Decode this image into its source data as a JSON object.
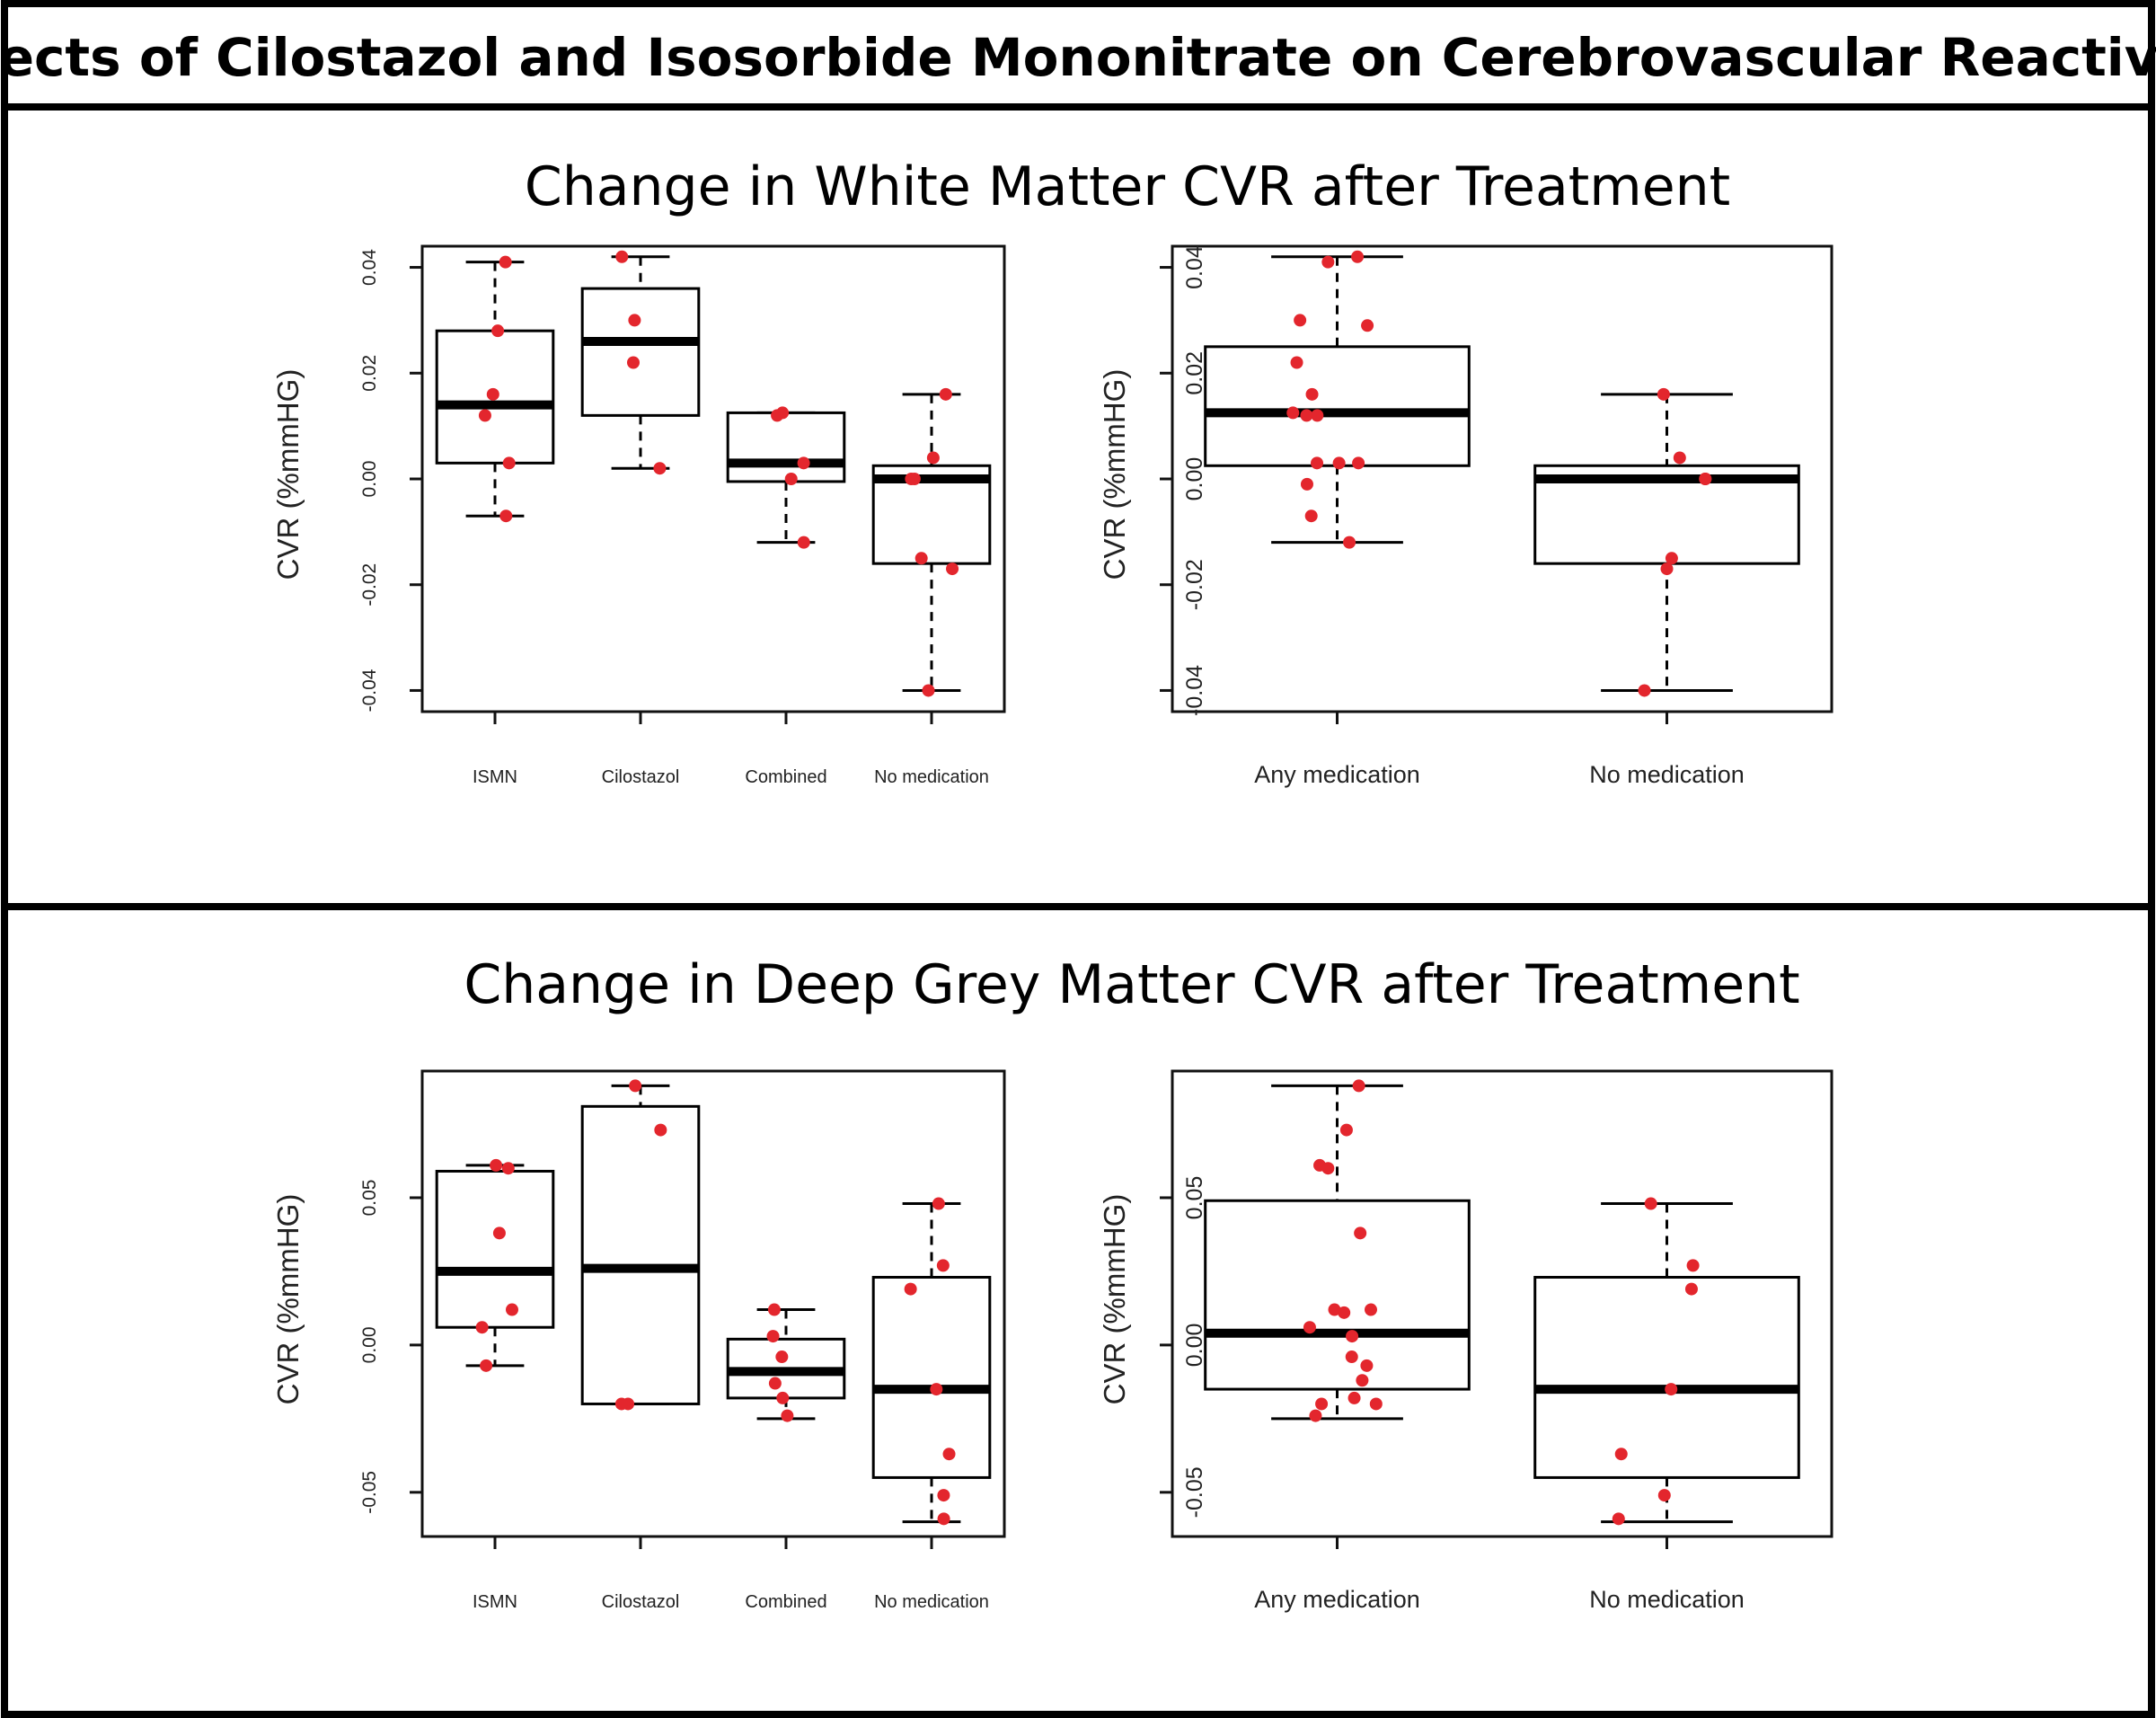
{
  "figure_title": "Effects of Cilostazol and Isosorbide Mononitrate on Cerebrovascular Reactivity",
  "panels": [
    {
      "title": "Change in White Matter CVR after Treatment"
    },
    {
      "title": "Change in Deep Grey Matter CVR after Treatment"
    }
  ],
  "colors": {
    "points": "#e3262d",
    "box": "#000000",
    "border": "#000000"
  },
  "chart_data": [
    {
      "type": "box",
      "panel": 0,
      "ylabel": "CVR (%mmHG)",
      "ylim": [
        -0.044,
        0.044
      ],
      "yticks": [
        -0.04,
        -0.02,
        0.0,
        0.02,
        0.04
      ],
      "ytick_labels": [
        "-0.04",
        "-0.02",
        "0.00",
        "0.02",
        "0.04"
      ],
      "categories": [
        "ISMN",
        "Cilostazol",
        "Combined",
        "No medication"
      ],
      "boxes": [
        {
          "whisker_low": -0.007,
          "q1": 0.003,
          "median": 0.014,
          "q3": 0.028,
          "whisker_high": 0.041
        },
        {
          "whisker_low": 0.002,
          "q1": 0.012,
          "median": 0.026,
          "q3": 0.036,
          "whisker_high": 0.042
        },
        {
          "whisker_low": -0.012,
          "q1": -0.0005,
          "median": 0.003,
          "q3": 0.0125,
          "whisker_high": 0.0125
        },
        {
          "whisker_low": -0.04,
          "q1": -0.016,
          "median": 0.0,
          "q3": 0.0025,
          "whisker_high": 0.016
        }
      ],
      "points": [
        [
          0.041,
          0.028,
          0.016,
          0.012,
          0.003,
          -0.007
        ],
        [
          0.042,
          0.03,
          0.022,
          0.002
        ],
        [
          0.0125,
          0.012,
          0.003,
          0.0,
          -0.012
        ],
        [
          0.016,
          0.004,
          0.0,
          0.0,
          -0.015,
          -0.017,
          -0.04
        ]
      ]
    },
    {
      "type": "box",
      "panel": 0,
      "ylabel": "CVR (%mmHG)",
      "ylim": [
        -0.044,
        0.044
      ],
      "yticks": [
        -0.04,
        -0.02,
        0.0,
        0.02,
        0.04
      ],
      "ytick_labels": [
        "-0.04",
        "-0.02",
        "0.00",
        "0.02",
        "0.04"
      ],
      "categories": [
        "Any medication",
        "No medication"
      ],
      "boxes": [
        {
          "whisker_low": -0.012,
          "q1": 0.0025,
          "median": 0.0125,
          "q3": 0.025,
          "whisker_high": 0.042
        },
        {
          "whisker_low": -0.04,
          "q1": -0.016,
          "median": 0.0,
          "q3": 0.0025,
          "whisker_high": 0.016
        }
      ],
      "points": [
        [
          0.042,
          0.041,
          0.03,
          0.029,
          0.022,
          0.016,
          0.0125,
          0.012,
          0.012,
          0.003,
          0.003,
          0.003,
          -0.001,
          -0.007,
          -0.012
        ],
        [
          0.016,
          0.004,
          0.0,
          0.0,
          -0.015,
          -0.017,
          -0.04
        ]
      ]
    },
    {
      "type": "box",
      "panel": 1,
      "ylabel": "CVR (%mmHG)",
      "ylim": [
        -0.065,
        0.093
      ],
      "yticks": [
        -0.05,
        0.0,
        0.05
      ],
      "ytick_labels": [
        "-0.05",
        "0.00",
        "0.05"
      ],
      "categories": [
        "ISMN",
        "Cilostazol",
        "Combined",
        "No medication"
      ],
      "boxes": [
        {
          "whisker_low": -0.007,
          "q1": 0.006,
          "median": 0.025,
          "q3": 0.059,
          "whisker_high": 0.061
        },
        {
          "whisker_low": -0.02,
          "q1": -0.02,
          "median": 0.026,
          "q3": 0.081,
          "whisker_high": 0.088
        },
        {
          "whisker_low": -0.025,
          "q1": -0.018,
          "median": -0.009,
          "q3": 0.002,
          "whisker_high": 0.012
        },
        {
          "whisker_low": -0.06,
          "q1": -0.045,
          "median": -0.015,
          "q3": 0.023,
          "whisker_high": 0.048
        }
      ],
      "points": [
        [
          0.061,
          0.06,
          0.038,
          0.012,
          0.006,
          -0.007
        ],
        [
          0.088,
          0.073,
          -0.02,
          -0.02
        ],
        [
          0.012,
          0.003,
          -0.004,
          -0.013,
          -0.018,
          -0.024
        ],
        [
          0.048,
          0.027,
          0.019,
          -0.015,
          -0.037,
          -0.051,
          -0.059
        ]
      ]
    },
    {
      "type": "box",
      "panel": 1,
      "ylabel": "CVR (%mmHG)",
      "ylim": [
        -0.065,
        0.093
      ],
      "yticks": [
        -0.05,
        0.0,
        0.05
      ],
      "ytick_labels": [
        "-0.05",
        "0.00",
        "0.05"
      ],
      "categories": [
        "Any medication",
        "No medication"
      ],
      "boxes": [
        {
          "whisker_low": -0.025,
          "q1": -0.015,
          "median": 0.004,
          "q3": 0.049,
          "whisker_high": 0.088
        },
        {
          "whisker_low": -0.06,
          "q1": -0.045,
          "median": -0.015,
          "q3": 0.023,
          "whisker_high": 0.048
        }
      ],
      "points": [
        [
          0.088,
          0.073,
          0.061,
          0.06,
          0.038,
          0.012,
          0.012,
          0.011,
          0.006,
          0.003,
          -0.004,
          -0.007,
          -0.012,
          -0.018,
          -0.02,
          -0.02,
          -0.024
        ],
        [
          0.048,
          0.027,
          0.019,
          -0.015,
          -0.037,
          -0.051,
          -0.059
        ]
      ]
    }
  ]
}
